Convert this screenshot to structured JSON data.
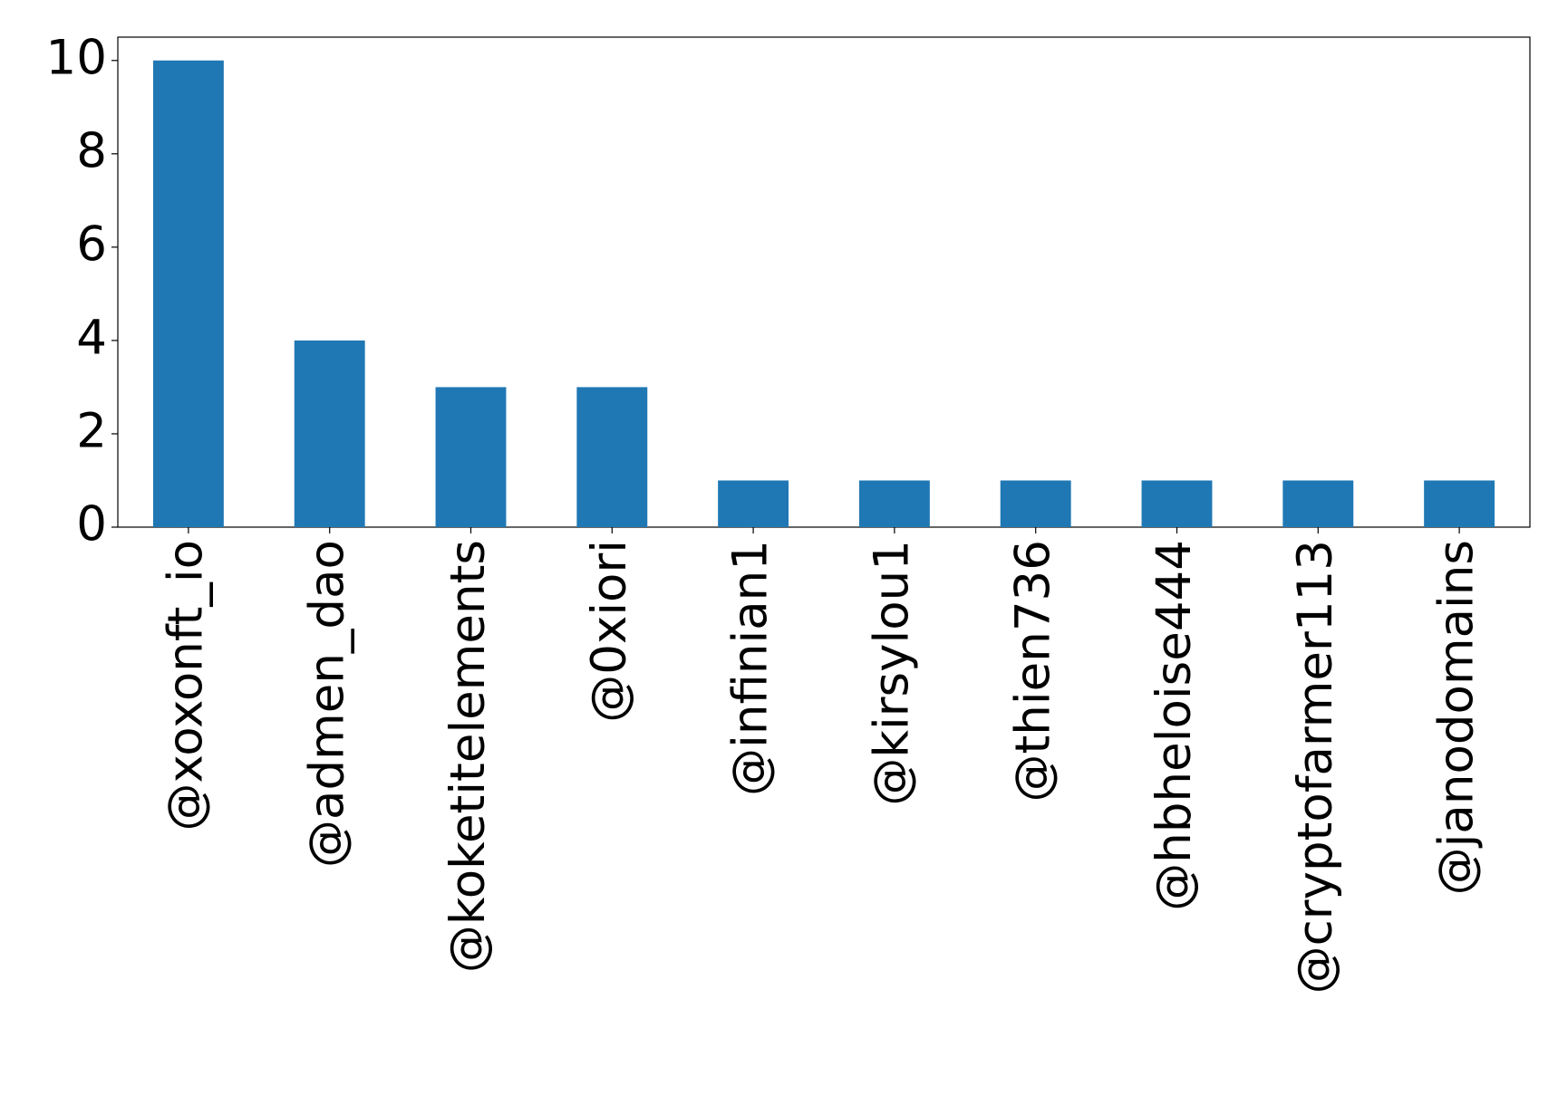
{
  "chart_data": {
    "type": "bar",
    "categories": [
      "@xoxonft_io",
      "@admen_dao",
      "@koketitelements",
      "@0xiori",
      "@infinian1",
      "@kirsylou1",
      "@thien736",
      "@hbheloise444",
      "@cryptofarmer113",
      "@janodomains"
    ],
    "values": [
      10,
      4,
      3,
      3,
      1,
      1,
      1,
      1,
      1,
      1
    ],
    "color": "#1f77b4",
    "ylim": [
      0,
      10.5
    ],
    "yticks": [
      0,
      2,
      4,
      6,
      8,
      10
    ],
    "grid": false
  }
}
